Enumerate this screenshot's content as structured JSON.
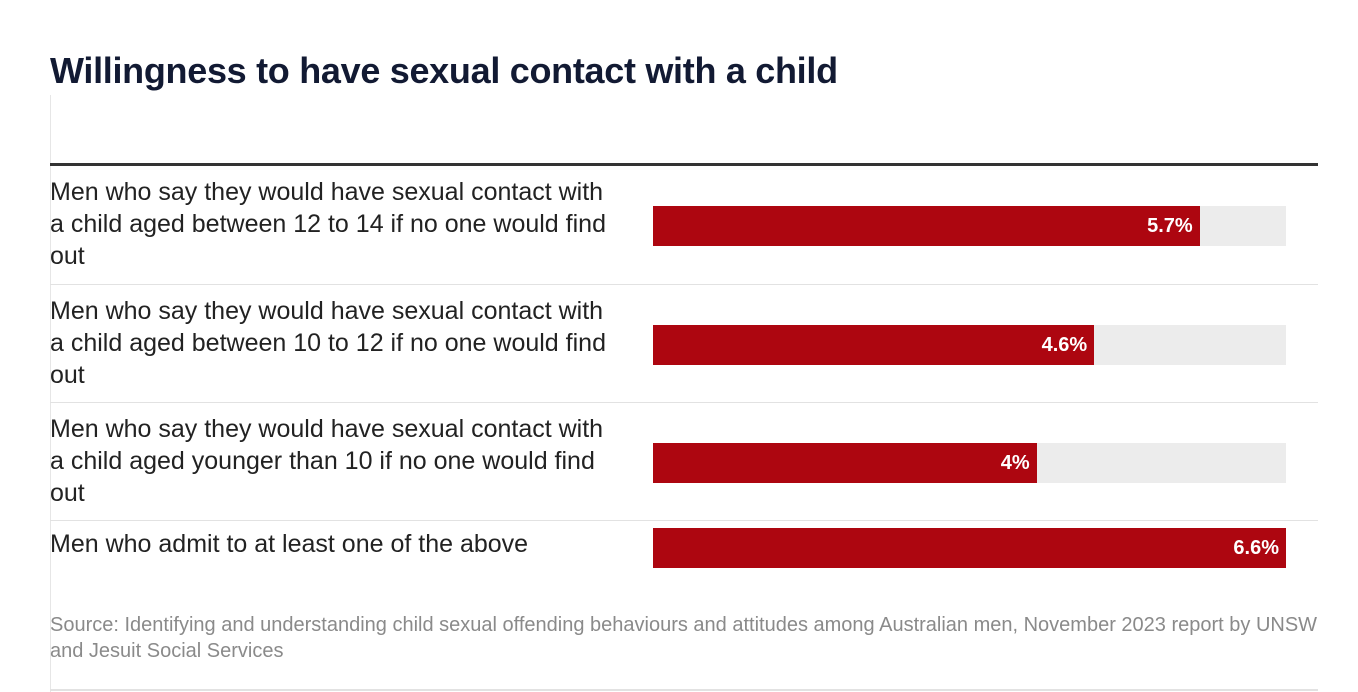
{
  "chart_data": {
    "type": "bar",
    "orientation": "horizontal",
    "title": "Willingness to have sexual contact with a child",
    "categories": [
      "Men who say they would have sexual contact with a child aged between 12 to 14 if no one would find out",
      "Men who say they would have sexual contact with a child aged between 10 to 12 if no one would find out",
      "Men who say they would have sexual contact with a child aged younger than 10 if no one would find out",
      "Men who admit to at least one of the above"
    ],
    "values": [
      5.7,
      4.6,
      4,
      6.6
    ],
    "value_labels": [
      "5.7%",
      "4.6%",
      "4%",
      "6.6%"
    ],
    "xlim": [
      0,
      6.6
    ],
    "grid": false,
    "legend": "none",
    "colors": {
      "bar": "#ad0610",
      "track": "#ececec"
    }
  },
  "source": "Source: Identifying and understanding child sexual offending behaviours and attitudes among Australian men, November 2023 report by UNSW and Jesuit Social Services"
}
